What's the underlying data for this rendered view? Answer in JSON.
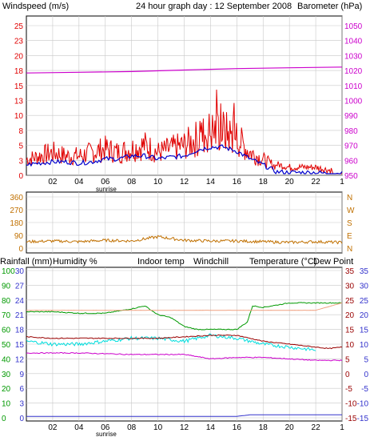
{
  "header": {
    "title": "24 hour graph day : 12 September 2008",
    "left_label": "Windspeed (m/s)",
    "right_label": "Barometer (hPa)"
  },
  "colors": {
    "windspeed": "#e00000",
    "windspeed_avg": "#0000cc",
    "barometer": "#cc00cc",
    "direction": "#c07000",
    "rainfall": "#3333cc",
    "humidity": "#009900",
    "indoor": "#f0a080",
    "windchill": "#00dddd",
    "temperature": "#990000",
    "dewpoint": "#cc00cc",
    "grid": "#c8c8c8",
    "frame": "#000000"
  },
  "panel1": {
    "y_left_ticks": [
      "25",
      "23",
      "20",
      "18",
      "15",
      "13",
      "10",
      "8",
      "5",
      "3",
      "0"
    ],
    "y_right_ticks": [
      "1050",
      "1040",
      "1030",
      "1020",
      "1010",
      "1000",
      "990",
      "980",
      "970",
      "960",
      "950"
    ],
    "x_ticks": [
      "02",
      "04",
      "06",
      "08",
      "10",
      "12",
      "14",
      "16",
      "18",
      "20",
      "22",
      "1"
    ],
    "sunrise_label": "sunrise"
  },
  "panel2": {
    "y_left_ticks": [
      "360",
      "270",
      "180",
      "90",
      "0"
    ],
    "y_right_letters": [
      "N",
      "W",
      "S",
      "E",
      "N"
    ]
  },
  "panel3": {
    "legend": {
      "rainfall": "Rainfall (mm)",
      "humidity": "Humidity %",
      "indoor": "Indoor temp",
      "windchill": "Windchill",
      "temperature": "Temperature (°C)",
      "dewpoint": "Dew Point"
    },
    "humidity_ticks": [
      "100",
      "90",
      "80",
      "70",
      "60",
      "50",
      "40",
      "30",
      "20",
      "10",
      "0"
    ],
    "rain_ticks": [
      "30",
      "27",
      "24",
      "21",
      "18",
      "15",
      "12",
      "9",
      "6",
      "3",
      "0"
    ],
    "temp_ticks": [
      "35",
      "30",
      "25",
      "20",
      "15",
      "10",
      "5",
      "0",
      "-5",
      "-10",
      "-15"
    ],
    "x_ticks": [
      "02",
      "04",
      "06",
      "08",
      "10",
      "12",
      "14",
      "16",
      "18",
      "20",
      "22",
      "1"
    ],
    "sunrise_label": "sunrise"
  },
  "chart_data": [
    {
      "type": "line",
      "xlabel": "",
      "x_range_hours": [
        0,
        24
      ],
      "series": [
        {
          "name": "Windspeed",
          "axis": "left",
          "x": [
            0,
            1,
            2,
            3,
            4,
            5,
            6,
            7,
            8,
            9,
            10,
            11,
            12,
            13,
            14,
            15,
            16,
            17,
            18,
            19,
            20,
            21,
            22,
            23
          ],
          "values": [
            2,
            2.5,
            3,
            2.5,
            2.5,
            3,
            3.5,
            3,
            3.5,
            4,
            3,
            3.5,
            4,
            5,
            6,
            6,
            5,
            3,
            2,
            1,
            0.5,
            0.5,
            0.5,
            0
          ]
        },
        {
          "name": "Windspeed avg",
          "axis": "left",
          "x": [
            0,
            1,
            2,
            3,
            4,
            5,
            6,
            7,
            8,
            9,
            10,
            11,
            12,
            13,
            14,
            15,
            16,
            17,
            18,
            19,
            20,
            21,
            22,
            23
          ],
          "values": [
            1.5,
            1.8,
            2,
            2,
            1.8,
            2,
            2.5,
            2.5,
            3,
            3,
            2.5,
            2.8,
            3,
            4,
            4.5,
            4.5,
            3.8,
            2.5,
            1.5,
            0.3,
            0.2,
            0.2,
            0.2,
            0
          ]
        },
        {
          "name": "Barometer",
          "axis": "right",
          "x": [
            0,
            4,
            8,
            12,
            16,
            20,
            24
          ],
          "values": [
            1018,
            1018.5,
            1019,
            1020,
            1021,
            1021.5,
            1022
          ]
        }
      ],
      "ylim_left": [
        0,
        25
      ],
      "ylim_right": [
        950,
        1050
      ]
    },
    {
      "type": "line",
      "x_range_hours": [
        0,
        24
      ],
      "series": [
        {
          "name": "Wind direction",
          "x": [
            0,
            2,
            4,
            6,
            8,
            10,
            12,
            14,
            16,
            18,
            20,
            22,
            24
          ],
          "values": [
            45,
            50,
            45,
            55,
            50,
            80,
            55,
            50,
            50,
            45,
            40,
            45,
            40
          ]
        }
      ],
      "ylim": [
        0,
        360
      ]
    },
    {
      "type": "line",
      "x_range_hours": [
        0,
        24
      ],
      "series": [
        {
          "name": "Humidity",
          "axis": "humidity",
          "x": [
            0,
            2,
            4,
            6,
            8,
            9,
            10,
            11,
            12,
            13,
            14,
            16,
            16.8,
            17.2,
            18,
            20,
            22,
            24
          ],
          "values": [
            72,
            72,
            71,
            71,
            74,
            76,
            70,
            68,
            62,
            60,
            60,
            60,
            65,
            76,
            75,
            78,
            78,
            78
          ]
        },
        {
          "name": "Indoor temp",
          "axis": "temp",
          "x": [
            0,
            4,
            8,
            12,
            16,
            20,
            22,
            24
          ],
          "values": [
            21.5,
            21.5,
            21.5,
            21.5,
            21.5,
            21.5,
            21.5,
            24
          ]
        },
        {
          "name": "Windchill",
          "axis": "temp",
          "x": [
            0,
            2,
            4,
            6,
            8,
            10,
            12,
            14,
            16,
            18,
            20,
            22
          ],
          "values": [
            11,
            10,
            10,
            11,
            12,
            12,
            11,
            13,
            12,
            10,
            9,
            8
          ]
        },
        {
          "name": "Temperature",
          "axis": "temp",
          "x": [
            0,
            2,
            4,
            6,
            8,
            10,
            12,
            14,
            16,
            18,
            20,
            22,
            23,
            24
          ],
          "values": [
            12.5,
            12,
            12,
            12,
            12,
            12,
            12.5,
            13,
            13,
            11,
            10,
            9,
            8.5,
            9
          ]
        },
        {
          "name": "Dew Point",
          "axis": "temp",
          "x": [
            0,
            4,
            8,
            12,
            14,
            16,
            18,
            20,
            22,
            24
          ],
          "values": [
            7,
            7,
            6.5,
            6.5,
            5,
            5.5,
            5.5,
            5,
            4.5,
            4.5
          ]
        },
        {
          "name": "Rainfall",
          "axis": "rain",
          "x": [
            0,
            8,
            16,
            17,
            24
          ],
          "values": [
            0.3,
            0.3,
            0.3,
            0.6,
            0.6
          ]
        }
      ],
      "ylim_humidity": [
        0,
        100
      ],
      "ylim_rain": [
        0,
        30
      ],
      "ylim_temp": [
        -15,
        35
      ]
    }
  ]
}
